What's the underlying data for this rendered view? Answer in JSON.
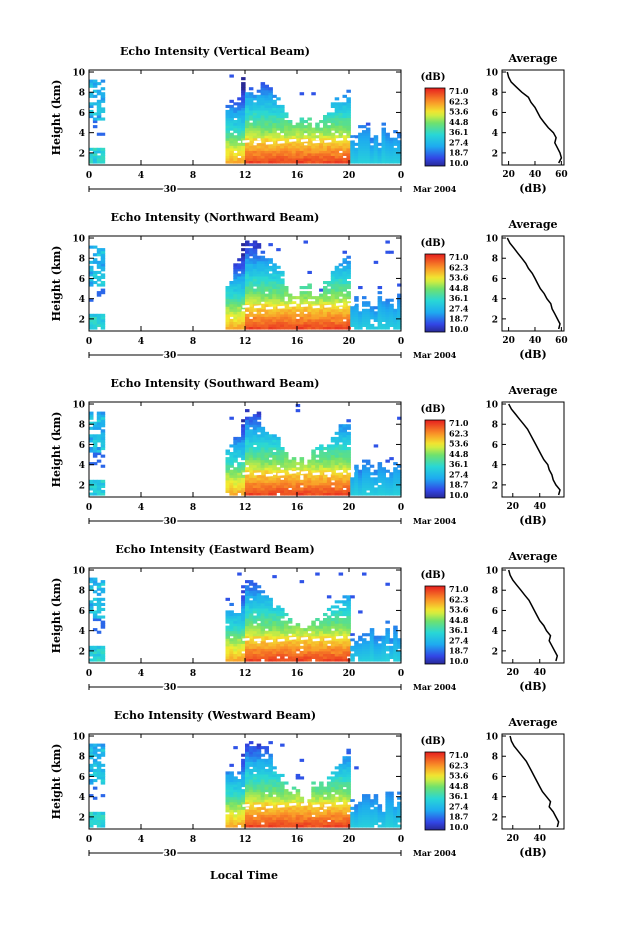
{
  "figure": {
    "x_title": "Local Time",
    "date_label": "Mar 2004",
    "date_tick": "30",
    "colorbar_unit": "(dB)",
    "colorbar_labels": [
      "71.0",
      "62.3",
      "53.6",
      "44.8",
      "36.1",
      "27.4",
      "18.7",
      "10.0"
    ],
    "average_title": "Average",
    "average_xlabel": "(dB)"
  },
  "chart_data": [
    {
      "type": "heatmap",
      "title": "Echo Intensity (Vertical Beam)",
      "ylabel": "Height (km)",
      "x_ticks": [
        "0",
        "4",
        "8",
        "12",
        "16",
        "20",
        "0"
      ],
      "y_ticks": [
        "10",
        "8",
        "6",
        "4",
        "2"
      ],
      "xlim": [
        0,
        24
      ],
      "ylim": [
        0.8,
        10.2
      ],
      "colorbar_range": [
        10.0,
        71.0
      ],
      "bright_band_km": 3.0,
      "profile": {
        "xticks": [
          "20",
          "40",
          "60"
        ],
        "xlim": [
          15,
          62
        ],
        "yticks": [
          "10",
          "8",
          "6",
          "4",
          "2"
        ],
        "height_km": [
          1,
          1.5,
          2,
          2.5,
          3,
          3.5,
          4,
          4.5,
          5,
          5.5,
          6,
          6.5,
          7,
          7.5,
          8,
          8.5,
          9,
          9.5,
          10
        ],
        "db": [
          58,
          60,
          59,
          57,
          55,
          56,
          54,
          50,
          47,
          44,
          42,
          40,
          37,
          35,
          30,
          26,
          22,
          20,
          19
        ]
      }
    },
    {
      "type": "heatmap",
      "title": "Echo Intensity (Northward Beam)",
      "ylabel": "Height (km)",
      "x_ticks": [
        "0",
        "4",
        "8",
        "12",
        "16",
        "20",
        "0"
      ],
      "y_ticks": [
        "10",
        "8",
        "6",
        "4",
        "2"
      ],
      "xlim": [
        0,
        24
      ],
      "ylim": [
        0.8,
        10.2
      ],
      "colorbar_range": [
        10.0,
        71.0
      ],
      "bright_band_km": 3.1,
      "profile": {
        "xticks": [
          "20",
          "40",
          "60"
        ],
        "xlim": [
          15,
          62
        ],
        "yticks": [
          "10",
          "8",
          "6",
          "4",
          "2"
        ],
        "height_km": [
          1,
          1.5,
          2,
          2.5,
          3,
          3.5,
          4,
          4.5,
          5,
          5.5,
          6,
          6.5,
          7,
          7.5,
          8,
          8.5,
          9,
          9.5,
          10
        ],
        "db": [
          58,
          59,
          57,
          55,
          53,
          52,
          49,
          47,
          44,
          42,
          40,
          38,
          35,
          33,
          30,
          27,
          24,
          21,
          19
        ]
      }
    },
    {
      "type": "heatmap",
      "title": "Echo Intensity (Southward Beam)",
      "ylabel": "Height (km)",
      "x_ticks": [
        "0",
        "4",
        "8",
        "12",
        "16",
        "20",
        "0"
      ],
      "y_ticks": [
        "10",
        "8",
        "6",
        "4",
        "2"
      ],
      "xlim": [
        0,
        24
      ],
      "ylim": [
        0.8,
        10.2
      ],
      "colorbar_range": [
        10.0,
        71.0
      ],
      "bright_band_km": 3.0,
      "profile": {
        "xticks": [
          "20",
          "40"
        ],
        "xlim": [
          12,
          58
        ],
        "yticks": [
          "10",
          "8",
          "6",
          "4",
          "2"
        ],
        "height_km": [
          1,
          1.5,
          2,
          2.5,
          3,
          3.5,
          4,
          4.5,
          5,
          5.5,
          6,
          6.5,
          7,
          7.5,
          8,
          8.5,
          9,
          9.5,
          10
        ],
        "db": [
          54,
          55,
          52,
          50,
          49,
          47,
          46,
          43,
          41,
          39,
          37,
          35,
          33,
          31,
          28,
          25,
          22,
          19,
          17
        ]
      }
    },
    {
      "type": "heatmap",
      "title": "Echo Intensity (Eastward Beam)",
      "ylabel": "Height (km)",
      "x_ticks": [
        "0",
        "4",
        "8",
        "12",
        "16",
        "20",
        "0"
      ],
      "y_ticks": [
        "10",
        "8",
        "6",
        "4",
        "2"
      ],
      "xlim": [
        0,
        24
      ],
      "ylim": [
        0.8,
        10.2
      ],
      "colorbar_range": [
        10.0,
        71.0
      ],
      "bright_band_km": 3.0,
      "profile": {
        "xticks": [
          "20",
          "40"
        ],
        "xlim": [
          12,
          58
        ],
        "yticks": [
          "10",
          "8",
          "6",
          "4",
          "2"
        ],
        "height_km": [
          1,
          1.5,
          2,
          2.5,
          3,
          3.5,
          4,
          4.5,
          5,
          5.5,
          6,
          6.5,
          7,
          7.5,
          8,
          8.5,
          9,
          9.5,
          10
        ],
        "db": [
          52,
          53,
          51,
          49,
          47,
          48,
          45,
          43,
          40,
          38,
          36,
          34,
          32,
          29,
          26,
          23,
          20,
          18,
          17
        ]
      }
    },
    {
      "type": "heatmap",
      "title": "Echo Intensity (Westward Beam)",
      "ylabel": "Height (km)",
      "x_ticks": [
        "0",
        "4",
        "8",
        "12",
        "16",
        "20",
        "0"
      ],
      "y_ticks": [
        "10",
        "8",
        "6",
        "4",
        "2"
      ],
      "xlim": [
        0,
        24
      ],
      "ylim": [
        0.8,
        10.2
      ],
      "colorbar_range": [
        10.0,
        71.0
      ],
      "bright_band_km": 3.0,
      "profile": {
        "xticks": [
          "20",
          "40"
        ],
        "xlim": [
          12,
          58
        ],
        "yticks": [
          "10",
          "8",
          "6",
          "4",
          "2"
        ],
        "height_km": [
          1,
          1.5,
          2,
          2.5,
          3,
          3.5,
          4,
          4.5,
          5,
          5.5,
          6,
          6.5,
          7,
          7.5,
          8,
          8.5,
          9,
          9.5,
          10
        ],
        "db": [
          53,
          54,
          52,
          50,
          47,
          48,
          45,
          42,
          40,
          38,
          36,
          34,
          32,
          30,
          27,
          24,
          21,
          19,
          18
        ]
      }
    }
  ]
}
